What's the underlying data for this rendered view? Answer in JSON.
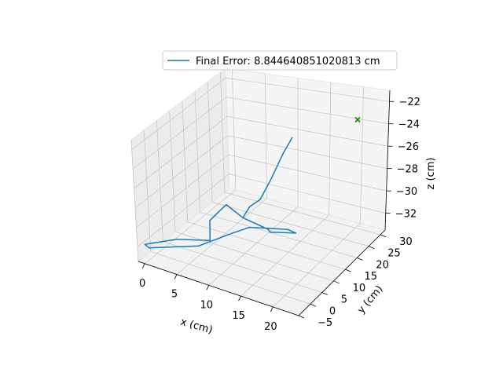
{
  "chart_data": {
    "type": "line",
    "projection": "3d",
    "legend": {
      "placement": "upper-center",
      "entries": [
        "Final Error: 8.844640851020813 cm"
      ]
    },
    "xlabel": "x (cm)",
    "ylabel": "y (cm)",
    "zlabel": "z (cm)",
    "xlim": [
      -1,
      24
    ],
    "ylim": [
      -5,
      32
    ],
    "zlim": [
      -33.5,
      -21
    ],
    "x_ticks": [
      0,
      5,
      10,
      15,
      20
    ],
    "x_tick_labels": [
      "0",
      "5",
      "10",
      "15",
      "20"
    ],
    "y_ticks": [
      -5,
      0,
      5,
      10,
      15,
      20,
      25,
      30
    ],
    "y_tick_labels": [
      "−5",
      "0",
      "5",
      "10",
      "15",
      "20",
      "25",
      "30"
    ],
    "z_ticks": [
      -32,
      -30,
      -28,
      -26,
      -24,
      -22
    ],
    "z_tick_labels": [
      "−32",
      "−30",
      "−28",
      "−26",
      "−24",
      "−22"
    ],
    "grid": true,
    "series": [
      {
        "name": "Final Error: 8.844640851020813 cm",
        "color": "#1f77b4",
        "points": [
          [
            12.3,
            23.8,
            -24.8
          ],
          [
            12.0,
            20.8,
            -25.8
          ],
          [
            11.6,
            16.9,
            -27.5
          ],
          [
            11.2,
            13.5,
            -28.8
          ],
          [
            10.5,
            11.0,
            -29.1
          ],
          [
            9.9,
            9.7,
            -30.0
          ],
          [
            12.9,
            12.1,
            -31.1
          ],
          [
            12.8,
            13.2,
            -31.6
          ],
          [
            15.2,
            17.6,
            -32.2
          ],
          [
            14.7,
            15.5,
            -31.5
          ],
          [
            12.8,
            11.6,
            -30.9
          ],
          [
            11.0,
            9.5,
            -30.7
          ],
          [
            8.9,
            7.9,
            -31.3
          ],
          [
            5.2,
            3.7,
            -32.4
          ],
          [
            0.0,
            -3.0,
            -32.3
          ],
          [
            -0.4,
            -3.6,
            -31.9
          ],
          [
            3.2,
            0.1,
            -31.4
          ],
          [
            6.6,
            4.7,
            -31.8
          ],
          [
            6.4,
            5.4,
            -30.0
          ],
          [
            6.4,
            12.1,
            -29.8
          ],
          [
            9.9,
            9.7,
            -30.0
          ]
        ]
      },
      {
        "name": "",
        "type": "scatter",
        "marker": "x",
        "color": "#008000",
        "points": [
          [
            23.5,
            20.5,
            -21.3
          ]
        ]
      }
    ]
  }
}
